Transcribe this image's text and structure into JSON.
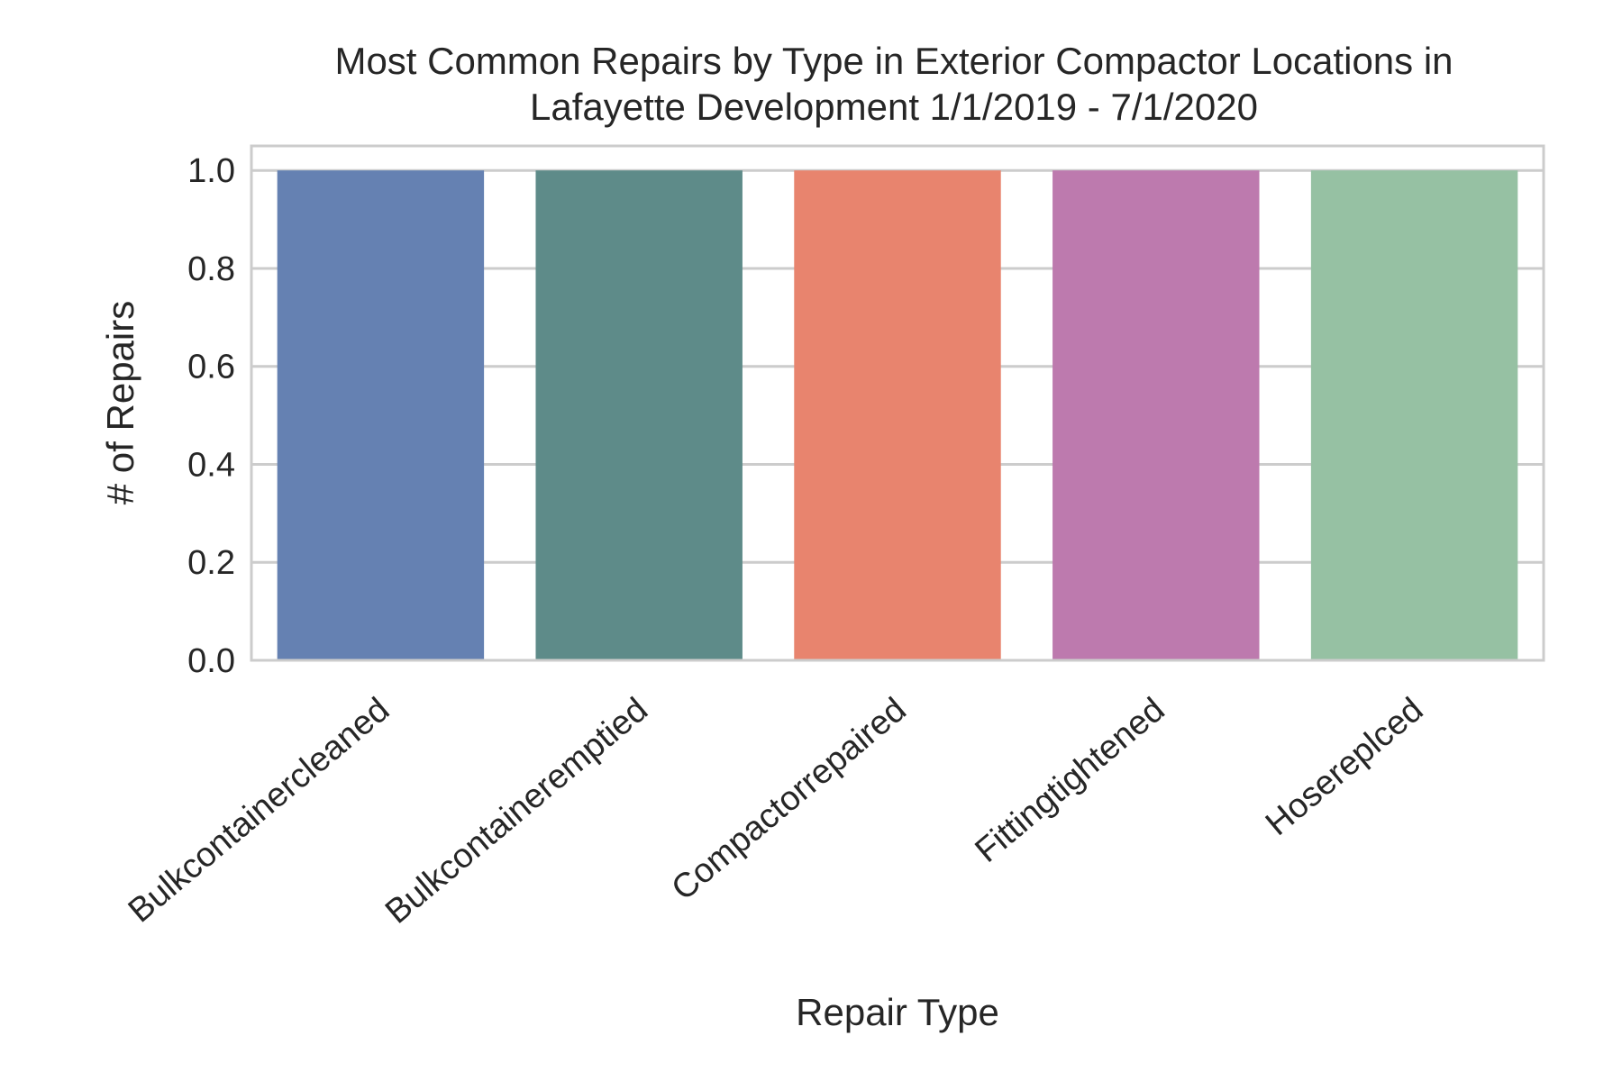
{
  "chart_data": {
    "type": "bar",
    "title_lines": [
      "Most Common Repairs by Type in Exterior Compactor Locations in",
      "Lafayette Development 1/1/2019 - 7/1/2020"
    ],
    "xlabel": "Repair Type",
    "ylabel": "# of Repairs",
    "categories": [
      "Bulkcontainercleaned",
      "Bulkcontaineremptied",
      "Compactorrepaired",
      "Fittingtightened",
      "Hosereplced"
    ],
    "values": [
      1,
      1,
      1,
      1,
      1
    ],
    "colors": [
      "#6581b2",
      "#5e8b89",
      "#e8846e",
      "#bd7aae",
      "#96c1a3"
    ],
    "ylim": [
      0,
      1.05
    ],
    "yticks": [
      0.0,
      0.2,
      0.4,
      0.6,
      0.8,
      1.0
    ],
    "ytick_labels": [
      "0.0",
      "0.2",
      "0.4",
      "0.6",
      "0.8",
      "1.0"
    ],
    "grid": "horizontal",
    "legend": "none"
  }
}
